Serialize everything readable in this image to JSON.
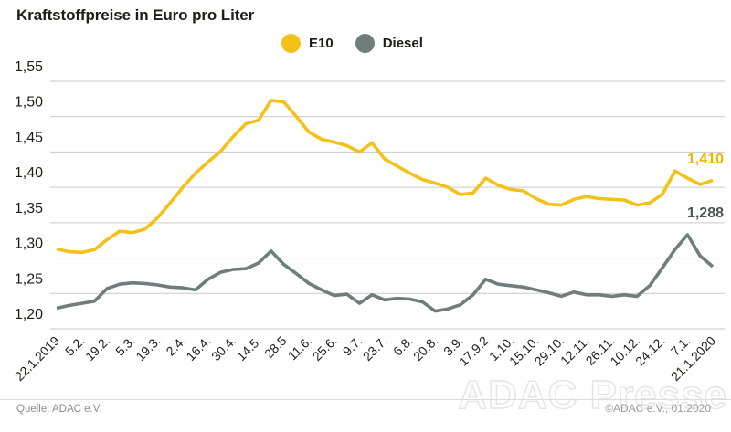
{
  "title": "Kraftstoffpreise in Euro pro Liter",
  "legend": [
    {
      "label": "E10",
      "color": "#F3C117"
    },
    {
      "label": "Diesel",
      "color": "#6F7D7D"
    }
  ],
  "chart_data": {
    "type": "line",
    "title": "Kraftstoffpreise in Euro pro Liter",
    "xlabel": "",
    "ylabel": "Euro pro Liter",
    "ylim": [
      1.2,
      1.55
    ],
    "grid": "horizontal",
    "legend_position": "top",
    "y_tick_labels": [
      "1,55",
      "1,50",
      "1,45",
      "1,40",
      "1,35",
      "1,30",
      "1,25",
      "1,20"
    ],
    "x_tick_labels": [
      "22.1.2019",
      "5.2.",
      "19.2.",
      "5.3.",
      "19.3.",
      "2.4.",
      "16.4.",
      "30.4.",
      "14.5.",
      "28.5",
      "11.6.",
      "25.6.",
      "9.7.",
      "23.7.",
      "6.8.",
      "20.8.",
      "3.9.",
      "17.9.2",
      "1.10.",
      "15.10.",
      "29.10.",
      "12.11.",
      "26.11.",
      "10.12.",
      "24.12.",
      "7.1.",
      "21.1.2020"
    ],
    "points_per_tick": 2,
    "series": [
      {
        "name": "E10",
        "color": "#F3C117",
        "end_label": "1,410",
        "end_label_color": "#F0B400",
        "values": [
          1.313,
          1.309,
          1.308,
          1.312,
          1.326,
          1.338,
          1.336,
          1.341,
          1.357,
          1.378,
          1.4,
          1.42,
          1.436,
          1.451,
          1.472,
          1.49,
          1.495,
          1.523,
          1.521,
          1.5,
          1.478,
          1.468,
          1.464,
          1.459,
          1.45,
          1.463,
          1.44,
          1.43,
          1.42,
          1.411,
          1.406,
          1.4,
          1.39,
          1.392,
          1.413,
          1.403,
          1.397,
          1.395,
          1.384,
          1.376,
          1.375,
          1.383,
          1.387,
          1.384,
          1.383,
          1.382,
          1.375,
          1.378,
          1.39,
          1.423,
          1.413,
          1.404,
          1.41
        ]
      },
      {
        "name": "Diesel",
        "color": "#6F7D7D",
        "end_label": "1,288",
        "end_label_color": "#4A5750",
        "values": [
          1.229,
          1.233,
          1.236,
          1.239,
          1.257,
          1.263,
          1.265,
          1.264,
          1.262,
          1.259,
          1.258,
          1.255,
          1.27,
          1.28,
          1.284,
          1.285,
          1.293,
          1.31,
          1.291,
          1.278,
          1.264,
          1.255,
          1.247,
          1.249,
          1.236,
          1.248,
          1.241,
          1.243,
          1.242,
          1.238,
          1.225,
          1.228,
          1.234,
          1.248,
          1.27,
          1.263,
          1.261,
          1.259,
          1.255,
          1.251,
          1.246,
          1.252,
          1.248,
          1.248,
          1.246,
          1.248,
          1.246,
          1.261,
          1.286,
          1.312,
          1.333,
          1.303,
          1.288
        ]
      }
    ]
  },
  "footer": {
    "source": "Quelle: ADAC e.V.",
    "watermark": "ADAC Presse",
    "copyright": "©ADAC e.V., 01.2020"
  }
}
